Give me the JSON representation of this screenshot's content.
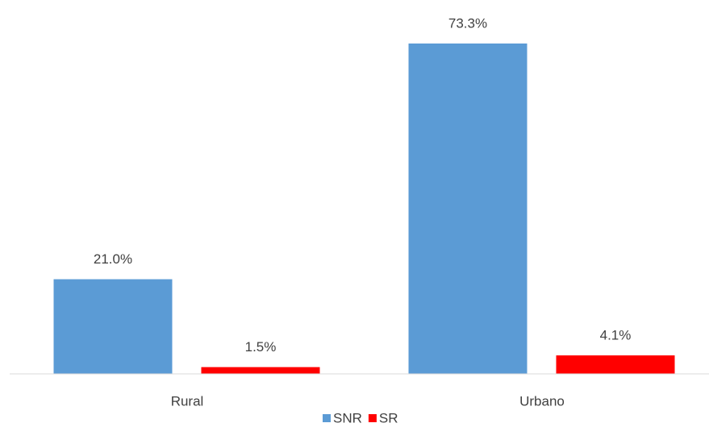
{
  "chart_data": {
    "type": "bar",
    "categories": [
      "Rural",
      "Urbano"
    ],
    "series": [
      {
        "name": "SNR",
        "color": "#5b9bd5",
        "values": [
          21.0,
          73.3
        ],
        "value_labels": [
          "21.0%",
          "73.3%"
        ]
      },
      {
        "name": "SR",
        "color": "#ff0000",
        "values": [
          1.5,
          4.1
        ],
        "value_labels": [
          "1.5%",
          "4.1%"
        ]
      }
    ],
    "legend": "bottom"
  }
}
